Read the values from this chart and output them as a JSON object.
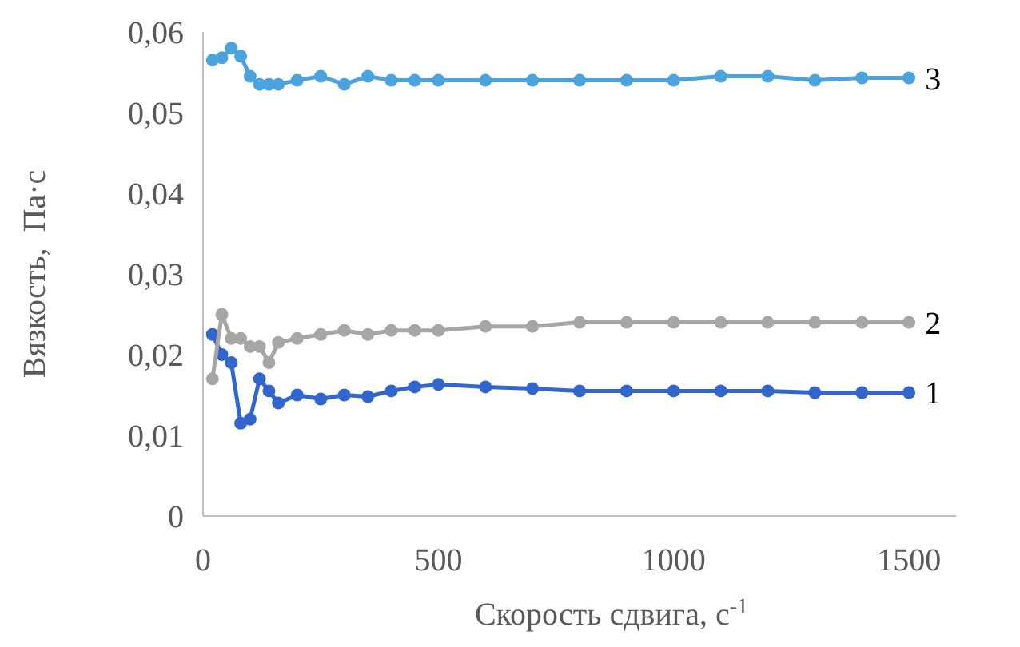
{
  "chart_data": {
    "type": "line",
    "xlabel": "Скорость сдвига, с$^{-1}$",
    "ylabel": "Вязкость,  Па·с",
    "x": [
      20,
      40,
      60,
      80,
      100,
      120,
      140,
      160,
      200,
      250,
      300,
      350,
      400,
      450,
      500,
      600,
      700,
      800,
      900,
      1000,
      1100,
      1200,
      1300,
      1400,
      1500
    ],
    "xlim": [
      0,
      1600
    ],
    "xticks": [
      0,
      500,
      1000,
      1500
    ],
    "ylim": [
      0,
      0.06
    ],
    "yticks": [
      {
        "value": 0,
        "label": "0"
      },
      {
        "value": 0.01,
        "label": "0,01"
      },
      {
        "value": 0.02,
        "label": "0,02"
      },
      {
        "value": 0.03,
        "label": "0,03"
      },
      {
        "value": 0.04,
        "label": "0,04"
      },
      {
        "value": 0.05,
        "label": "0,05"
      },
      {
        "value": 0.06,
        "label": "0,06"
      }
    ],
    "grid": false,
    "marker": "circle",
    "line_style": "solid",
    "series": [
      {
        "name": "1",
        "color": "#3366cc",
        "values": [
          0.0225,
          0.02,
          0.019,
          0.0115,
          0.012,
          0.017,
          0.0155,
          0.014,
          0.015,
          0.0145,
          0.015,
          0.0148,
          0.0155,
          0.016,
          0.0163,
          0.016,
          0.0158,
          0.0155,
          0.0155,
          0.0155,
          0.0155,
          0.0155,
          0.0153,
          0.0153,
          0.0153
        ]
      },
      {
        "name": "2",
        "color": "#a6a6a6",
        "values": [
          0.017,
          0.025,
          0.022,
          0.022,
          0.021,
          0.021,
          0.019,
          0.0215,
          0.022,
          0.0225,
          0.023,
          0.0225,
          0.023,
          0.023,
          0.023,
          0.0235,
          0.0235,
          0.024,
          0.024,
          0.024,
          0.024,
          0.024,
          0.024,
          0.024,
          0.024
        ]
      },
      {
        "name": "3",
        "color": "#4ba3dd",
        "values": [
          0.0565,
          0.0568,
          0.058,
          0.057,
          0.0545,
          0.0535,
          0.0535,
          0.0535,
          0.054,
          0.0545,
          0.0535,
          0.0545,
          0.054,
          0.054,
          0.054,
          0.054,
          0.054,
          0.054,
          0.054,
          0.054,
          0.0545,
          0.0545,
          0.054,
          0.0543,
          0.0543
        ]
      }
    ]
  }
}
